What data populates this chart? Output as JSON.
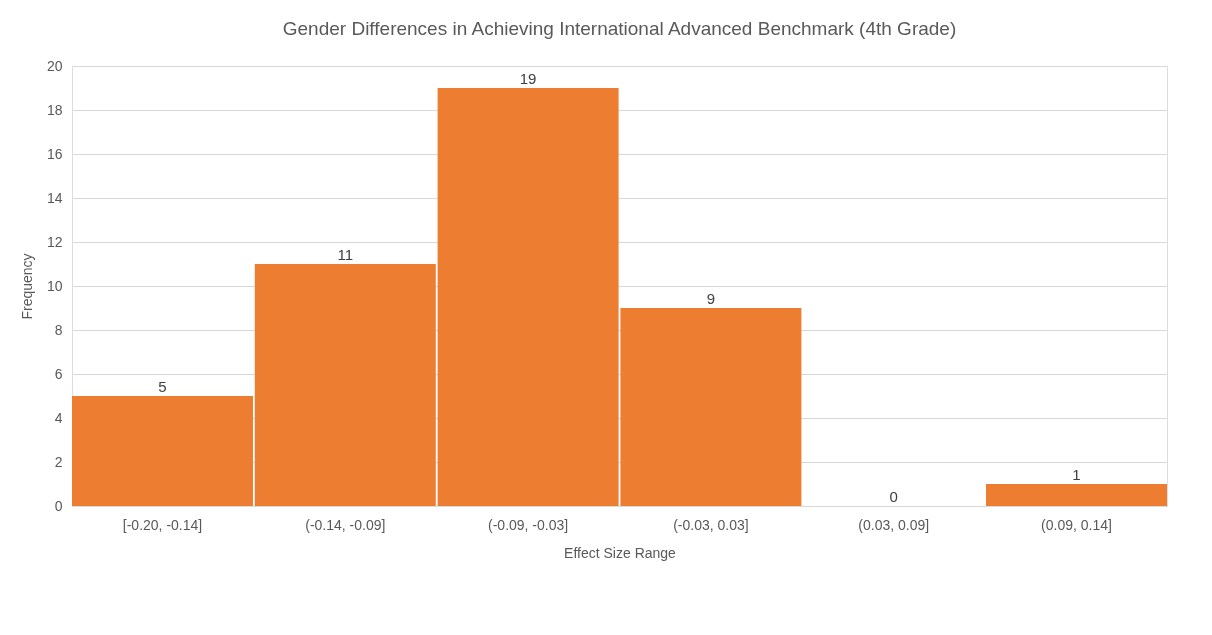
{
  "chart_data": {
    "type": "bar",
    "title": "Gender Differences in Achieving International Advanced Benchmark (4th Grade)",
    "xlabel": "Effect Size Range",
    "ylabel": "Frequency",
    "categories": [
      "[-0.20, -0.14]",
      "(-0.14, -0.09]",
      "(-0.09, -0.03]",
      "(-0.03, 0.03]",
      "(0.03, 0.09]",
      "(0.09, 0.14]"
    ],
    "values": [
      5,
      11,
      19,
      9,
      0,
      1
    ],
    "color": "#ed7d31",
    "ylim": [
      0,
      20
    ],
    "yticks": [
      0,
      2,
      4,
      6,
      8,
      10,
      12,
      14,
      16,
      18,
      20
    ],
    "grid": "y",
    "data_labels": true
  }
}
